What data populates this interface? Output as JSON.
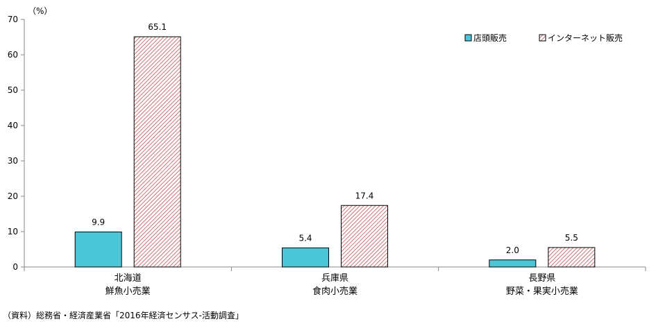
{
  "chart_data": {
    "type": "bar",
    "y_unit_label": "（%）",
    "ylim": [
      0,
      70
    ],
    "yticks": [
      0,
      10,
      20,
      30,
      40,
      50,
      60,
      70
    ],
    "categories": [
      {
        "line1": "北海道",
        "line2": "鮮魚小売業"
      },
      {
        "line1": "兵庫県",
        "line2": "食肉小売業"
      },
      {
        "line1": "長野県",
        "line2": "野菜・果実小売業"
      }
    ],
    "series": [
      {
        "name": "店頭販売",
        "values": [
          9.9,
          5.4,
          2.0
        ],
        "value_labels": [
          "9.9",
          "5.4",
          "2.0"
        ],
        "color": "#4bc6d9"
      },
      {
        "name": "インターネット販売",
        "values": [
          65.1,
          17.4,
          5.5
        ],
        "value_labels": [
          "65.1",
          "17.4",
          "5.5"
        ],
        "color": "#c0504d",
        "pattern": "diagonal-hatch"
      }
    ],
    "grid": false,
    "legend_position": "top-right"
  },
  "source_note": "（資料）総務省・経済産業省「2016年経済センサス-活動調査」"
}
